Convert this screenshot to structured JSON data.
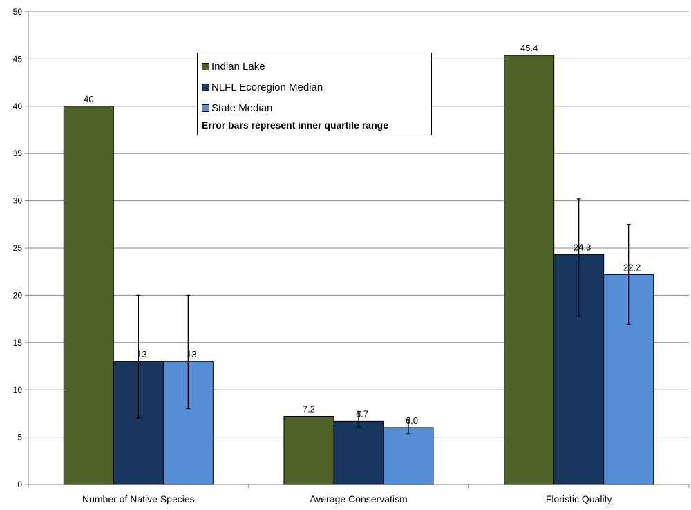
{
  "chart_data": {
    "type": "bar",
    "categories": [
      "Number of Native Species",
      "Average Conservatism",
      "Floristic Quality"
    ],
    "series": [
      {
        "name": "Indian Lake",
        "color": "#4f6228",
        "values": [
          40,
          7.2,
          45.4
        ],
        "labels": [
          "40",
          "7.2",
          "45.4"
        ],
        "error": null
      },
      {
        "name": "NLFL Ecoregion Median",
        "color": "#17375e",
        "values": [
          13,
          6.7,
          24.3
        ],
        "labels": [
          "13",
          "6.7",
          "24.3"
        ],
        "error": [
          [
            7,
            20
          ],
          [
            6.1,
            7.7
          ],
          [
            17.8,
            30.2
          ]
        ]
      },
      {
        "name": "State Median",
        "color": "#558ed5",
        "values": [
          13,
          6.0,
          22.2
        ],
        "labels": [
          "13",
          "6.0",
          "22.2"
        ],
        "error": [
          [
            8,
            20
          ],
          [
            5.4,
            6.8
          ],
          [
            16.9,
            27.5
          ]
        ]
      }
    ],
    "ylim": [
      0,
      50
    ],
    "yticks": [
      0,
      5,
      10,
      15,
      20,
      25,
      30,
      35,
      40,
      45,
      50
    ],
    "grid": true,
    "legend_placement": "top-center",
    "legend_note": "Error bars represent inner quartile range"
  }
}
